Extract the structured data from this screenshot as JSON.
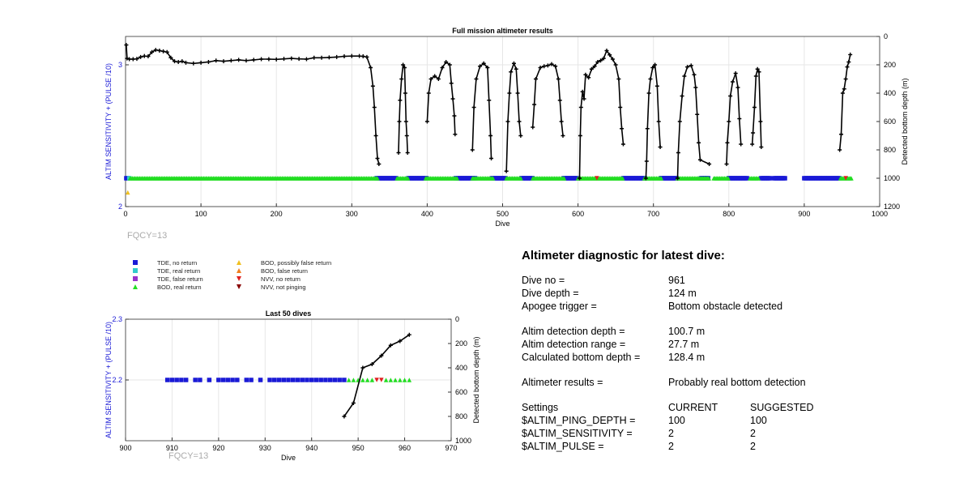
{
  "chart_data": [
    {
      "type": "scatter",
      "title": "Full mission altimeter results",
      "xlabel": "Dive",
      "ylabel_left": "ALTIM SENSITIVITY + (PULSE /10)",
      "ylabel_right": "Detected bottom depth (m)",
      "xlim": [
        0,
        1000
      ],
      "ylim_left": [
        2,
        3.2
      ],
      "ylim_right_reversed": [
        0,
        1200
      ],
      "x_ticks": [
        0,
        100,
        200,
        300,
        400,
        500,
        600,
        700,
        800,
        900,
        1000
      ],
      "y_left_ticks": [
        2,
        3
      ],
      "y_right_ticks": [
        0,
        200,
        400,
        600,
        800,
        1000,
        1200
      ],
      "grid": true,
      "annotation": "FQCY=13",
      "series": [
        {
          "name": "Detected bottom depth",
          "axis": "right",
          "color": "#000000",
          "points": [
            [
              1,
              60
            ],
            [
              2,
              155
            ],
            [
              5,
              160
            ],
            [
              10,
              160
            ],
            [
              15,
              158
            ],
            [
              20,
              145
            ],
            [
              25,
              138
            ],
            [
              30,
              140
            ],
            [
              35,
              110
            ],
            [
              40,
              95
            ],
            [
              45,
              100
            ],
            [
              50,
              105
            ],
            [
              55,
              110
            ],
            [
              60,
              150
            ],
            [
              65,
              175
            ],
            [
              70,
              180
            ],
            [
              75,
              175
            ],
            [
              80,
              185
            ],
            [
              90,
              190
            ],
            [
              100,
              185
            ],
            [
              110,
              180
            ],
            [
              120,
              170
            ],
            [
              130,
              175
            ],
            [
              140,
              170
            ],
            [
              150,
              165
            ],
            [
              160,
              170
            ],
            [
              170,
              165
            ],
            [
              180,
              160
            ],
            [
              190,
              160
            ],
            [
              200,
              162
            ],
            [
              210,
              158
            ],
            [
              220,
              155
            ],
            [
              230,
              158
            ],
            [
              240,
              160
            ],
            [
              250,
              150
            ],
            [
              260,
              150
            ],
            [
              270,
              148
            ],
            [
              280,
              145
            ],
            [
              290,
              140
            ],
            [
              300,
              138
            ],
            [
              310,
              138
            ],
            [
              315,
              140
            ],
            [
              320,
              145
            ],
            [
              325,
              220
            ],
            [
              328,
              350
            ],
            [
              330,
              500
            ],
            [
              332,
              700
            ],
            [
              334,
              860
            ],
            [
              336,
              900
            ],
            [
              362,
              820
            ],
            [
              363,
              600
            ],
            [
              364,
              450
            ],
            [
              366,
              300
            ],
            [
              368,
              200
            ],
            [
              370,
              220
            ],
            [
              371,
              400
            ],
            [
              372,
              600
            ],
            [
              373,
              700
            ],
            [
              374,
              820
            ],
            [
              400,
              600
            ],
            [
              402,
              400
            ],
            [
              405,
              300
            ],
            [
              410,
              280
            ],
            [
              415,
              300
            ],
            [
              420,
              220
            ],
            [
              425,
              180
            ],
            [
              430,
              200
            ],
            [
              432,
              330
            ],
            [
              434,
              440
            ],
            [
              436,
              560
            ],
            [
              437,
              690
            ],
            [
              460,
              800
            ],
            [
              462,
              500
            ],
            [
              465,
              300
            ],
            [
              470,
              210
            ],
            [
              475,
              190
            ],
            [
              480,
              220
            ],
            [
              482,
              450
            ],
            [
              484,
              700
            ],
            [
              485,
              860
            ],
            [
              505,
              950
            ],
            [
              507,
              600
            ],
            [
              509,
              400
            ],
            [
              511,
              250
            ],
            [
              515,
              190
            ],
            [
              518,
              230
            ],
            [
              520,
              400
            ],
            [
              522,
              600
            ],
            [
              524,
              700
            ],
            [
              540,
              640
            ],
            [
              542,
              480
            ],
            [
              544,
              300
            ],
            [
              550,
              220
            ],
            [
              555,
              210
            ],
            [
              560,
              205
            ],
            [
              565,
              195
            ],
            [
              570,
              210
            ],
            [
              574,
              300
            ],
            [
              576,
              450
            ],
            [
              578,
              600
            ],
            [
              580,
              700
            ],
            [
              602,
              1000
            ],
            [
              603,
              700
            ],
            [
              604,
              500
            ],
            [
              606,
              390
            ],
            [
              608,
              440
            ],
            [
              610,
              270
            ],
            [
              614,
              290
            ],
            [
              618,
              230
            ],
            [
              622,
              210
            ],
            [
              626,
              180
            ],
            [
              630,
              170
            ],
            [
              634,
              155
            ],
            [
              638,
              100
            ],
            [
              642,
              130
            ],
            [
              646,
              160
            ],
            [
              650,
              200
            ],
            [
              654,
              300
            ],
            [
              656,
              500
            ],
            [
              658,
              650
            ],
            [
              660,
              760
            ],
            [
              690,
              1000
            ],
            [
              691,
              880
            ],
            [
              692,
              650
            ],
            [
              694,
              400
            ],
            [
              696,
              300
            ],
            [
              699,
              220
            ],
            [
              702,
              200
            ],
            [
              705,
              350
            ],
            [
              707,
              600
            ],
            [
              709,
              780
            ],
            [
              732,
              1000
            ],
            [
              733,
              820
            ],
            [
              735,
              600
            ],
            [
              738,
              420
            ],
            [
              741,
              280
            ],
            [
              745,
              215
            ],
            [
              750,
              205
            ],
            [
              754,
              270
            ],
            [
              756,
              360
            ],
            [
              758,
              550
            ],
            [
              760,
              750
            ],
            [
              762,
              870
            ],
            [
              774,
              900
            ],
            [
              797,
              900
            ],
            [
              798,
              750
            ],
            [
              800,
              600
            ],
            [
              802,
              420
            ],
            [
              805,
              320
            ],
            [
              809,
              260
            ],
            [
              812,
              360
            ],
            [
              814,
              580
            ],
            [
              816,
              760
            ],
            [
              831,
              760
            ],
            [
              832,
              680
            ],
            [
              834,
              500
            ],
            [
              836,
              280
            ],
            [
              838,
              230
            ],
            [
              840,
              250
            ],
            [
              842,
              600
            ],
            [
              843,
              780
            ],
            [
              947,
              800
            ],
            [
              949,
              690
            ],
            [
              951,
              400
            ],
            [
              953,
              370
            ],
            [
              955,
              300
            ],
            [
              957,
              215
            ],
            [
              959,
              180
            ],
            [
              961,
              128
            ]
          ]
        },
        {
          "name": "TDE, no return",
          "axis": "left",
          "marker": "square",
          "color": "#1a1ad6",
          "x_ranges": [
            [
              1,
              4
            ],
            [
              333,
              360
            ],
            [
              375,
              400
            ],
            [
              438,
              465
            ],
            [
              486,
              505
            ],
            [
              525,
              540
            ],
            [
              581,
              600
            ],
            [
              660,
              690
            ],
            [
              710,
              732
            ],
            [
              763,
              773
            ],
            [
              800,
              825
            ],
            [
              843,
              855
            ],
            [
              860,
              875
            ],
            [
              900,
              948
            ]
          ]
        },
        {
          "name": "TDE, real return",
          "axis": "left",
          "marker": "square",
          "color": "#33cccc",
          "x_ranges": [
            [
              5,
              6
            ]
          ]
        },
        {
          "name": "BOD, real return",
          "axis": "left",
          "marker": "triangle-up",
          "color": "#22dd22",
          "x_ranges": [
            [
              6,
              335
            ],
            [
              360,
              375
            ],
            [
              398,
              440
            ],
            [
              460,
              488
            ],
            [
              505,
              525
            ],
            [
              540,
              582
            ],
            [
              600,
              660
            ],
            [
              688,
              712
            ],
            [
              732,
              774
            ],
            [
              780,
              800
            ],
            [
              828,
              840
            ],
            [
              948,
              963
            ]
          ]
        },
        {
          "name": "BOD, possibly false return",
          "axis": "left",
          "marker": "triangle-up",
          "color": "#f0c020",
          "points": [
            [
              3,
              2.1
            ]
          ]
        },
        {
          "name": "NVV, no return",
          "axis": "left",
          "marker": "triangle-down",
          "color": "#e02020",
          "points": [
            [
              625,
              2.2
            ],
            [
              955,
              2.2
            ]
          ]
        }
      ]
    },
    {
      "type": "scatter",
      "title": "Last 50 dives",
      "xlabel": "Dive",
      "ylabel_left": "ALTIM SENSITIVITY + (PULSE /10)",
      "ylabel_right": "Detected bottom depth (m)",
      "xlim": [
        900,
        970
      ],
      "ylim_left": [
        2.1,
        2.3
      ],
      "ylim_right_reversed": [
        0,
        1000
      ],
      "x_ticks": [
        900,
        910,
        920,
        930,
        940,
        950,
        960,
        970
      ],
      "y_left_ticks": [
        2.2,
        2.3
      ],
      "y_right_ticks": [
        0,
        200,
        400,
        600,
        800,
        1000
      ],
      "grid": true,
      "annotation": "FQCY=13",
      "series": [
        {
          "name": "Detected bottom depth",
          "axis": "right",
          "color": "#000000",
          "points": [
            [
              947,
              800
            ],
            [
              949,
              690
            ],
            [
              951,
              400
            ],
            [
              953,
              370
            ],
            [
              955,
              300
            ],
            [
              957,
              215
            ],
            [
              959,
              180
            ],
            [
              961,
              128
            ]
          ]
        },
        {
          "name": "TDE, no return",
          "axis": "left",
          "marker": "square",
          "color": "#1a1ad6",
          "x": [
            909,
            910,
            911,
            912,
            913,
            915,
            916,
            918,
            920,
            921,
            922,
            923,
            924,
            926,
            927,
            929,
            931,
            932,
            933,
            934,
            935,
            936,
            937,
            938,
            939,
            940,
            941,
            942,
            943,
            944,
            945,
            946,
            947
          ]
        },
        {
          "name": "BOD, real return",
          "axis": "left",
          "marker": "triangle-up",
          "color": "#22dd22",
          "x": [
            948,
            949,
            950,
            951,
            952,
            953,
            956,
            957,
            958,
            959,
            960,
            961
          ]
        },
        {
          "name": "NVV, no return",
          "axis": "left",
          "marker": "triangle-down",
          "color": "#e02020",
          "x": [
            954,
            955
          ]
        }
      ]
    }
  ],
  "legend": [
    {
      "label": "TDE, no return",
      "marker": "square",
      "color": "#1a1ad6"
    },
    {
      "label": "TDE, real return",
      "marker": "square",
      "color": "#33cccc"
    },
    {
      "label": "TDE, false return",
      "marker": "square",
      "color": "#9933cc"
    },
    {
      "label": "BOD, real return",
      "marker": "triangle-up",
      "color": "#22dd22"
    },
    {
      "label": "BOD, possibly false return",
      "marker": "triangle-up",
      "color": "#f0c020"
    },
    {
      "label": "BOD, false return",
      "marker": "triangle-up",
      "color": "#f08020"
    },
    {
      "label": "NVV, no return",
      "marker": "triangle-down",
      "color": "#e02020"
    },
    {
      "label": "NVV, not pinging",
      "marker": "triangle-down",
      "color": "#880000"
    }
  ],
  "diagnostic": {
    "title": "Altimeter diagnostic for latest dive:",
    "dive_no_label": "Dive no =",
    "dive_no": "961",
    "dive_depth_label": "Dive depth =",
    "dive_depth": "124 m",
    "apogee_label": "Apogee trigger =",
    "apogee": "Bottom obstacle detected",
    "altim_depth_label": "Altim detection depth =",
    "altim_depth": "100.7 m",
    "altim_range_label": "Altim detection range =",
    "altim_range": "27.7 m",
    "calc_depth_label": "Calculated bottom depth =",
    "calc_depth": "128.4 m",
    "results_label": "Altimeter results =",
    "results": "Probably real bottom detection",
    "settings_label": "Settings",
    "current_label": "CURRENT",
    "suggested_label": "SUGGESTED",
    "ping_label": "$ALTIM_PING_DEPTH =",
    "ping_current": "100",
    "ping_suggested": "100",
    "sens_label": "$ALTIM_SENSITIVITY =",
    "sens_current": "2",
    "sens_suggested": "2",
    "pulse_label": "$ALTIM_PULSE =",
    "pulse_current": "2",
    "pulse_suggested": "2"
  }
}
